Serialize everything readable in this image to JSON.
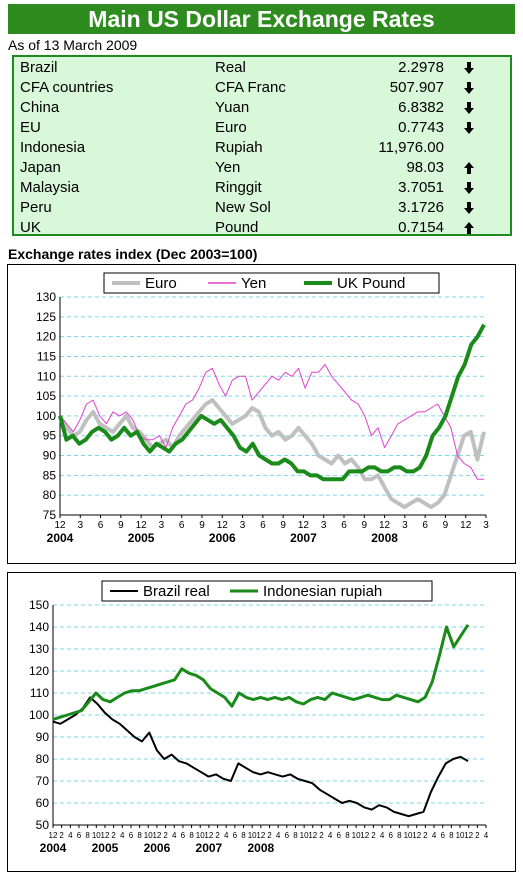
{
  "header": {
    "title": "Main US Dollar Exchange Rates",
    "as_of": "As of 13 March 2009"
  },
  "rates_table": {
    "rows": [
      {
        "country": "Brazil",
        "currency": "Real",
        "value": "2.2978",
        "direction": "down"
      },
      {
        "country": "CFA countries",
        "currency": "CFA Franc",
        "value": "507.907",
        "direction": "down"
      },
      {
        "country": "China",
        "currency": "Yuan",
        "value": "6.8382",
        "direction": "down"
      },
      {
        "country": "EU",
        "currency": "Euro",
        "value": "0.7743",
        "direction": "down"
      },
      {
        "country": "Indonesia",
        "currency": "Rupiah",
        "value": "11,976.00",
        "direction": "none"
      },
      {
        "country": "Japan",
        "currency": "Yen",
        "value": "98.03",
        "direction": "up"
      },
      {
        "country": "Malaysia",
        "currency": "Ringgit",
        "value": "3.7051",
        "direction": "down"
      },
      {
        "country": "Peru",
        "currency": "New Sol",
        "value": "3.1726",
        "direction": "down"
      },
      {
        "country": "UK",
        "currency": "Pound",
        "value": "0.7154",
        "direction": "up"
      }
    ]
  },
  "index_heading": "Exchange rates index (Dec 2003=100)",
  "chart_data": [
    {
      "type": "line",
      "title": "",
      "xlabel": "",
      "ylabel": "",
      "ylim": [
        75,
        130
      ],
      "yticks": [
        75,
        80,
        85,
        90,
        95,
        100,
        105,
        110,
        115,
        120,
        125,
        130
      ],
      "grid": "horizontal dashed",
      "legend": "top",
      "month_ticks": [
        "12",
        "3",
        "6",
        "9",
        "12",
        "3",
        "6",
        "9",
        "12",
        "3",
        "6",
        "9",
        "12",
        "3",
        "6",
        "9",
        "12",
        "3",
        "6",
        "9",
        "12",
        "3"
      ],
      "year_labels": [
        {
          "label": "2004",
          "month_index": 0
        },
        {
          "label": "2005",
          "month_index": 12
        },
        {
          "label": "2006",
          "month_index": 24
        },
        {
          "label": "2007",
          "month_index": 36
        },
        {
          "label": "2008",
          "month_index": 48
        }
      ],
      "series": [
        {
          "name": "Euro",
          "color": "#c0c0c0",
          "width": 4,
          "values": [
            100,
            97,
            95,
            96,
            99,
            101,
            98,
            97,
            96,
            98,
            100,
            97,
            96,
            94,
            92,
            93,
            94,
            92,
            95,
            97,
            99,
            101,
            103,
            104,
            102,
            100,
            98,
            99,
            100,
            102,
            101,
            97,
            95,
            96,
            94,
            95,
            97,
            95,
            93,
            90,
            89,
            88,
            90,
            88,
            89,
            87,
            84,
            84,
            85,
            82,
            79,
            78,
            77,
            78,
            79,
            78,
            77,
            78,
            80,
            85,
            90,
            95,
            96,
            89,
            96
          ]
        },
        {
          "name": "Yen",
          "color": "#e040d0",
          "width": 1,
          "values": [
            100,
            98,
            96,
            99,
            103,
            104,
            100,
            98,
            101,
            100,
            101,
            99,
            95,
            94,
            94,
            95,
            92,
            97,
            100,
            103,
            104,
            107,
            111,
            112,
            108,
            105,
            109,
            110,
            110,
            104,
            106,
            108,
            110,
            109,
            111,
            110,
            112,
            107,
            111,
            111,
            113,
            110,
            108,
            106,
            104,
            103,
            100,
            95,
            97,
            92,
            95,
            98,
            99,
            100,
            101,
            101,
            102,
            103,
            100,
            97,
            90,
            88,
            87,
            84,
            84
          ]
        },
        {
          "name": "UK Pound",
          "color": "#1a8a1a",
          "width": 4,
          "values": [
            100,
            94,
            95,
            93,
            94,
            96,
            97,
            96,
            94,
            95,
            97,
            95,
            96,
            93,
            91,
            93,
            92,
            91,
            93,
            94,
            96,
            98,
            100,
            99,
            98,
            99,
            97,
            95,
            92,
            91,
            93,
            90,
            89,
            88,
            88,
            89,
            88,
            86,
            86,
            85,
            85,
            84,
            84,
            84,
            84,
            86,
            86,
            86,
            87,
            87,
            86,
            86,
            87,
            87,
            86,
            86,
            87,
            90,
            95,
            97,
            100,
            105,
            110,
            113,
            118,
            120,
            123
          ]
        }
      ]
    },
    {
      "type": "line",
      "title": "",
      "xlabel": "",
      "ylabel": "",
      "ylim": [
        50,
        150
      ],
      "yticks": [
        50,
        60,
        70,
        80,
        90,
        100,
        110,
        120,
        130,
        140,
        150
      ],
      "grid": "horizontal dashed",
      "legend": "top",
      "month_ticks": [
        "12",
        "2",
        "4",
        "6",
        "8",
        "10",
        "12",
        "2",
        "4",
        "6",
        "8",
        "10",
        "12",
        "2",
        "4",
        "6",
        "8",
        "10",
        "12",
        "2",
        "4",
        "6",
        "8",
        "10",
        "12",
        "2",
        "4",
        "6",
        "8",
        "10",
        "12",
        "2",
        "4",
        "6",
        "8",
        "10",
        "12",
        "2",
        "4",
        "6",
        "8",
        "10",
        "12",
        "2",
        "4",
        "6",
        "8",
        "10",
        "12",
        "2",
        "4"
      ],
      "year_labels": [
        {
          "label": "2004",
          "month_index": 0
        },
        {
          "label": "2005",
          "month_index": 12
        },
        {
          "label": "2006",
          "month_index": 24
        },
        {
          "label": "2007",
          "month_index": 36
        },
        {
          "label": "2008",
          "month_index": 48
        }
      ],
      "series": [
        {
          "name": "Brazil real",
          "color": "#000000",
          "width": 2,
          "values": [
            97,
            96,
            98,
            100,
            103,
            108,
            105,
            101,
            98,
            96,
            93,
            90,
            88,
            92,
            84,
            80,
            82,
            79,
            78,
            76,
            74,
            72,
            73,
            71,
            70,
            78,
            76,
            74,
            73,
            74,
            73,
            72,
            73,
            71,
            70,
            69,
            66,
            64,
            62,
            60,
            61,
            60,
            58,
            57,
            59,
            58,
            56,
            55,
            54,
            55,
            56,
            65,
            72,
            78,
            80,
            81,
            79
          ]
        },
        {
          "name": "Indonesian rupiah",
          "color": "#1a8a1a",
          "width": 3,
          "values": [
            98,
            99,
            100,
            101,
            102,
            106,
            110,
            107,
            106,
            108,
            110,
            111,
            111,
            112,
            113,
            114,
            115,
            116,
            121,
            119,
            118,
            116,
            112,
            110,
            108,
            104,
            110,
            108,
            107,
            108,
            107,
            108,
            107,
            108,
            106,
            105,
            107,
            108,
            107,
            110,
            109,
            108,
            107,
            108,
            109,
            108,
            107,
            107,
            109,
            108,
            107,
            106,
            108,
            115,
            127,
            140,
            131,
            136,
            141
          ]
        }
      ]
    }
  ]
}
